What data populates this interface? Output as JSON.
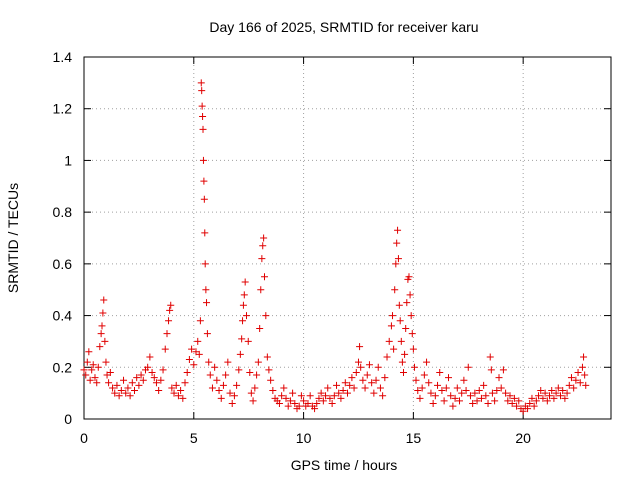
{
  "chart_data": {
    "type": "scatter",
    "title": "Day 166 of 2025, SRMTID for receiver karu",
    "xlabel": "GPS time / hours",
    "ylabel": "SRMTID / TECUs",
    "xlim": [
      0,
      24
    ],
    "ylim": [
      0,
      1.4
    ],
    "xticks": [
      0,
      5,
      10,
      15,
      20
    ],
    "xtick_labels": [
      "0",
      "5",
      "10",
      "15",
      "20"
    ],
    "yticks": [
      0,
      0.2,
      0.4,
      0.6,
      0.8,
      1.0,
      1.2,
      1.4
    ],
    "ytick_labels": [
      "0",
      "0.2",
      "0.4",
      "0.6",
      "0.8",
      "1",
      "1.2",
      "1.4"
    ],
    "grid": true,
    "marker": "+",
    "marker_color": "#e00000",
    "series": [
      {
        "name": "SRMTID",
        "points": [
          [
            0.0,
            0.19
          ],
          [
            0.08,
            0.17
          ],
          [
            0.15,
            0.22
          ],
          [
            0.22,
            0.26
          ],
          [
            0.28,
            0.15
          ],
          [
            0.35,
            0.19
          ],
          [
            0.42,
            0.21
          ],
          [
            0.5,
            0.16
          ],
          [
            0.58,
            0.14
          ],
          [
            0.65,
            0.2
          ],
          [
            0.72,
            0.28
          ],
          [
            0.78,
            0.33
          ],
          [
            0.82,
            0.36
          ],
          [
            0.86,
            0.41
          ],
          [
            0.9,
            0.46
          ],
          [
            0.95,
            0.3
          ],
          [
            1.0,
            0.22
          ],
          [
            1.05,
            0.17
          ],
          [
            1.12,
            0.14
          ],
          [
            1.2,
            0.18
          ],
          [
            1.3,
            0.12
          ],
          [
            1.4,
            0.1
          ],
          [
            1.5,
            0.13
          ],
          [
            1.6,
            0.09
          ],
          [
            1.7,
            0.11
          ],
          [
            1.8,
            0.15
          ],
          [
            1.9,
            0.1
          ],
          [
            2.0,
            0.12
          ],
          [
            2.1,
            0.09
          ],
          [
            2.2,
            0.14
          ],
          [
            2.3,
            0.11
          ],
          [
            2.4,
            0.16
          ],
          [
            2.5,
            0.13
          ],
          [
            2.6,
            0.17
          ],
          [
            2.7,
            0.15
          ],
          [
            2.8,
            0.19
          ],
          [
            2.9,
            0.2
          ],
          [
            3.0,
            0.24
          ],
          [
            3.1,
            0.18
          ],
          [
            3.2,
            0.16
          ],
          [
            3.3,
            0.14
          ],
          [
            3.4,
            0.11
          ],
          [
            3.5,
            0.15
          ],
          [
            3.6,
            0.19
          ],
          [
            3.7,
            0.27
          ],
          [
            3.78,
            0.33
          ],
          [
            3.85,
            0.38
          ],
          [
            3.9,
            0.42
          ],
          [
            3.95,
            0.44
          ],
          [
            4.0,
            0.12
          ],
          [
            4.1,
            0.1
          ],
          [
            4.2,
            0.13
          ],
          [
            4.3,
            0.09
          ],
          [
            4.4,
            0.11
          ],
          [
            4.5,
            0.08
          ],
          [
            4.6,
            0.14
          ],
          [
            4.7,
            0.18
          ],
          [
            4.8,
            0.23
          ],
          [
            4.9,
            0.27
          ],
          [
            5.0,
            0.21
          ],
          [
            5.1,
            0.26
          ],
          [
            5.18,
            0.3
          ],
          [
            5.25,
            0.25
          ],
          [
            5.3,
            0.38
          ],
          [
            5.34,
            1.3
          ],
          [
            5.36,
            1.27
          ],
          [
            5.38,
            1.21
          ],
          [
            5.4,
            1.17
          ],
          [
            5.42,
            1.12
          ],
          [
            5.44,
            1.0
          ],
          [
            5.46,
            0.92
          ],
          [
            5.48,
            0.85
          ],
          [
            5.5,
            0.72
          ],
          [
            5.52,
            0.6
          ],
          [
            5.55,
            0.5
          ],
          [
            5.58,
            0.45
          ],
          [
            5.62,
            0.33
          ],
          [
            5.68,
            0.22
          ],
          [
            5.75,
            0.17
          ],
          [
            5.85,
            0.12
          ],
          [
            5.95,
            0.2
          ],
          [
            6.05,
            0.15
          ],
          [
            6.15,
            0.11
          ],
          [
            6.25,
            0.08
          ],
          [
            6.35,
            0.13
          ],
          [
            6.45,
            0.17
          ],
          [
            6.55,
            0.22
          ],
          [
            6.65,
            0.1
          ],
          [
            6.75,
            0.06
          ],
          [
            6.85,
            0.09
          ],
          [
            6.95,
            0.13
          ],
          [
            7.05,
            0.19
          ],
          [
            7.12,
            0.25
          ],
          [
            7.18,
            0.31
          ],
          [
            7.22,
            0.38
          ],
          [
            7.26,
            0.44
          ],
          [
            7.3,
            0.48
          ],
          [
            7.34,
            0.53
          ],
          [
            7.4,
            0.4
          ],
          [
            7.48,
            0.3
          ],
          [
            7.55,
            0.18
          ],
          [
            7.62,
            0.1
          ],
          [
            7.7,
            0.07
          ],
          [
            7.78,
            0.12
          ],
          [
            7.86,
            0.17
          ],
          [
            7.94,
            0.22
          ],
          [
            8.0,
            0.35
          ],
          [
            8.05,
            0.5
          ],
          [
            8.1,
            0.62
          ],
          [
            8.14,
            0.67
          ],
          [
            8.18,
            0.7
          ],
          [
            8.22,
            0.55
          ],
          [
            8.28,
            0.4
          ],
          [
            8.35,
            0.24
          ],
          [
            8.42,
            0.19
          ],
          [
            8.5,
            0.15
          ],
          [
            8.6,
            0.11
          ],
          [
            8.7,
            0.08
          ],
          [
            8.8,
            0.07
          ],
          [
            8.9,
            0.06
          ],
          [
            9.0,
            0.09
          ],
          [
            9.1,
            0.12
          ],
          [
            9.2,
            0.08
          ],
          [
            9.3,
            0.05
          ],
          [
            9.4,
            0.07
          ],
          [
            9.5,
            0.1
          ],
          [
            9.6,
            0.06
          ],
          [
            9.7,
            0.04
          ],
          [
            9.8,
            0.05
          ],
          [
            9.9,
            0.09
          ],
          [
            10.0,
            0.07
          ],
          [
            10.1,
            0.05
          ],
          [
            10.2,
            0.06
          ],
          [
            10.3,
            0.09
          ],
          [
            10.4,
            0.05
          ],
          [
            10.5,
            0.04
          ],
          [
            10.6,
            0.06
          ],
          [
            10.7,
            0.08
          ],
          [
            10.8,
            0.1
          ],
          [
            10.9,
            0.07
          ],
          [
            11.0,
            0.09
          ],
          [
            11.1,
            0.12
          ],
          [
            11.2,
            0.08
          ],
          [
            11.3,
            0.06
          ],
          [
            11.4,
            0.09
          ],
          [
            11.5,
            0.13
          ],
          [
            11.6,
            0.1
          ],
          [
            11.7,
            0.08
          ],
          [
            11.8,
            0.11
          ],
          [
            11.9,
            0.14
          ],
          [
            12.0,
            0.1
          ],
          [
            12.1,
            0.13
          ],
          [
            12.2,
            0.16
          ],
          [
            12.3,
            0.12
          ],
          [
            12.4,
            0.18
          ],
          [
            12.5,
            0.22
          ],
          [
            12.55,
            0.28
          ],
          [
            12.6,
            0.2
          ],
          [
            12.7,
            0.15
          ],
          [
            12.8,
            0.12
          ],
          [
            12.9,
            0.17
          ],
          [
            13.0,
            0.21
          ],
          [
            13.1,
            0.14
          ],
          [
            13.2,
            0.1
          ],
          [
            13.3,
            0.15
          ],
          [
            13.4,
            0.2
          ],
          [
            13.5,
            0.12
          ],
          [
            13.6,
            0.09
          ],
          [
            13.7,
            0.16
          ],
          [
            13.8,
            0.24
          ],
          [
            13.9,
            0.3
          ],
          [
            14.0,
            0.36
          ],
          [
            14.05,
            0.4
          ],
          [
            14.1,
            0.27
          ],
          [
            14.15,
            0.5
          ],
          [
            14.2,
            0.6
          ],
          [
            14.24,
            0.68
          ],
          [
            14.28,
            0.73
          ],
          [
            14.32,
            0.62
          ],
          [
            14.36,
            0.44
          ],
          [
            14.4,
            0.38
          ],
          [
            14.45,
            0.3
          ],
          [
            14.5,
            0.22
          ],
          [
            14.55,
            0.18
          ],
          [
            14.6,
            0.25
          ],
          [
            14.65,
            0.35
          ],
          [
            14.7,
            0.45
          ],
          [
            14.75,
            0.54
          ],
          [
            14.8,
            0.55
          ],
          [
            14.85,
            0.48
          ],
          [
            14.9,
            0.4
          ],
          [
            14.95,
            0.33
          ],
          [
            15.0,
            0.27
          ],
          [
            15.05,
            0.2
          ],
          [
            15.12,
            0.15
          ],
          [
            15.2,
            0.11
          ],
          [
            15.3,
            0.08
          ],
          [
            15.4,
            0.12
          ],
          [
            15.5,
            0.17
          ],
          [
            15.6,
            0.22
          ],
          [
            15.7,
            0.14
          ],
          [
            15.8,
            0.1
          ],
          [
            15.9,
            0.06
          ],
          [
            16.0,
            0.09
          ],
          [
            16.1,
            0.13
          ],
          [
            16.2,
            0.18
          ],
          [
            16.3,
            0.11
          ],
          [
            16.4,
            0.07
          ],
          [
            16.5,
            0.12
          ],
          [
            16.6,
            0.16
          ],
          [
            16.7,
            0.09
          ],
          [
            16.8,
            0.05
          ],
          [
            16.9,
            0.08
          ],
          [
            17.0,
            0.12
          ],
          [
            17.1,
            0.07
          ],
          [
            17.2,
            0.1
          ],
          [
            17.3,
            0.15
          ],
          [
            17.4,
            0.11
          ],
          [
            17.5,
            0.2
          ],
          [
            17.6,
            0.09
          ],
          [
            17.7,
            0.06
          ],
          [
            17.8,
            0.1
          ],
          [
            17.9,
            0.07
          ],
          [
            18.0,
            0.11
          ],
          [
            18.1,
            0.08
          ],
          [
            18.2,
            0.13
          ],
          [
            18.3,
            0.09
          ],
          [
            18.4,
            0.06
          ],
          [
            18.5,
            0.24
          ],
          [
            18.55,
            0.19
          ],
          [
            18.6,
            0.1
          ],
          [
            18.7,
            0.07
          ],
          [
            18.8,
            0.11
          ],
          [
            18.9,
            0.16
          ],
          [
            19.0,
            0.12
          ],
          [
            19.1,
            0.19
          ],
          [
            19.2,
            0.1
          ],
          [
            19.3,
            0.07
          ],
          [
            19.4,
            0.09
          ],
          [
            19.5,
            0.06
          ],
          [
            19.6,
            0.08
          ],
          [
            19.7,
            0.05
          ],
          [
            19.8,
            0.07
          ],
          [
            19.9,
            0.04
          ],
          [
            20.0,
            0.03
          ],
          [
            20.1,
            0.05
          ],
          [
            20.2,
            0.04
          ],
          [
            20.3,
            0.06
          ],
          [
            20.4,
            0.08
          ],
          [
            20.5,
            0.05
          ],
          [
            20.6,
            0.07
          ],
          [
            20.7,
            0.09
          ],
          [
            20.8,
            0.11
          ],
          [
            20.9,
            0.08
          ],
          [
            21.0,
            0.1
          ],
          [
            21.1,
            0.07
          ],
          [
            21.2,
            0.09
          ],
          [
            21.3,
            0.11
          ],
          [
            21.4,
            0.08
          ],
          [
            21.5,
            0.1
          ],
          [
            21.6,
            0.12
          ],
          [
            21.7,
            0.09
          ],
          [
            21.8,
            0.11
          ],
          [
            21.9,
            0.08
          ],
          [
            22.0,
            0.1
          ],
          [
            22.1,
            0.13
          ],
          [
            22.2,
            0.16
          ],
          [
            22.3,
            0.12
          ],
          [
            22.4,
            0.15
          ],
          [
            22.5,
            0.18
          ],
          [
            22.6,
            0.14
          ],
          [
            22.7,
            0.2
          ],
          [
            22.75,
            0.24
          ],
          [
            22.8,
            0.17
          ],
          [
            22.85,
            0.13
          ]
        ]
      }
    ]
  }
}
